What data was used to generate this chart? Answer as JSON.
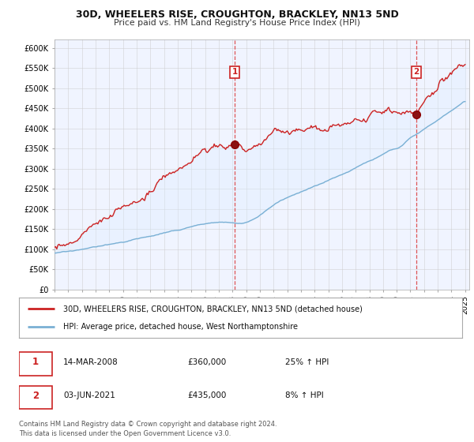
{
  "title": "30D, WHEELERS RISE, CROUGHTON, BRACKLEY, NN13 5ND",
  "subtitle": "Price paid vs. HM Land Registry's House Price Index (HPI)",
  "ylim": [
    0,
    620000
  ],
  "yticks": [
    0,
    50000,
    100000,
    150000,
    200000,
    250000,
    300000,
    350000,
    400000,
    450000,
    500000,
    550000,
    600000
  ],
  "ytick_labels": [
    "£0",
    "£50K",
    "£100K",
    "£150K",
    "£200K",
    "£250K",
    "£300K",
    "£350K",
    "£400K",
    "£450K",
    "£500K",
    "£550K",
    "£600K"
  ],
  "hpi_color": "#7ab0d4",
  "price_color": "#cc2222",
  "fill_color": "#ddeeff",
  "vline_color": "#dd4444",
  "sale1_year": 2008.17,
  "sale1_price": 360000,
  "sale2_year": 2021.42,
  "sale2_price": 435000,
  "legend_property": "30D, WHEELERS RISE, CROUGHTON, BRACKLEY, NN13 5ND (detached house)",
  "legend_hpi": "HPI: Average price, detached house, West Northamptonshire",
  "note1_date": "14-MAR-2008",
  "note1_price": "£360,000",
  "note1_hpi": "25% ↑ HPI",
  "note2_date": "03-JUN-2021",
  "note2_price": "£435,000",
  "note2_hpi": "8% ↑ HPI",
  "footer": "Contains HM Land Registry data © Crown copyright and database right 2024.\nThis data is licensed under the Open Government Licence v3.0.",
  "background_color": "#ffffff",
  "plot_background": "#f0f4ff",
  "grid_color": "#cccccc"
}
